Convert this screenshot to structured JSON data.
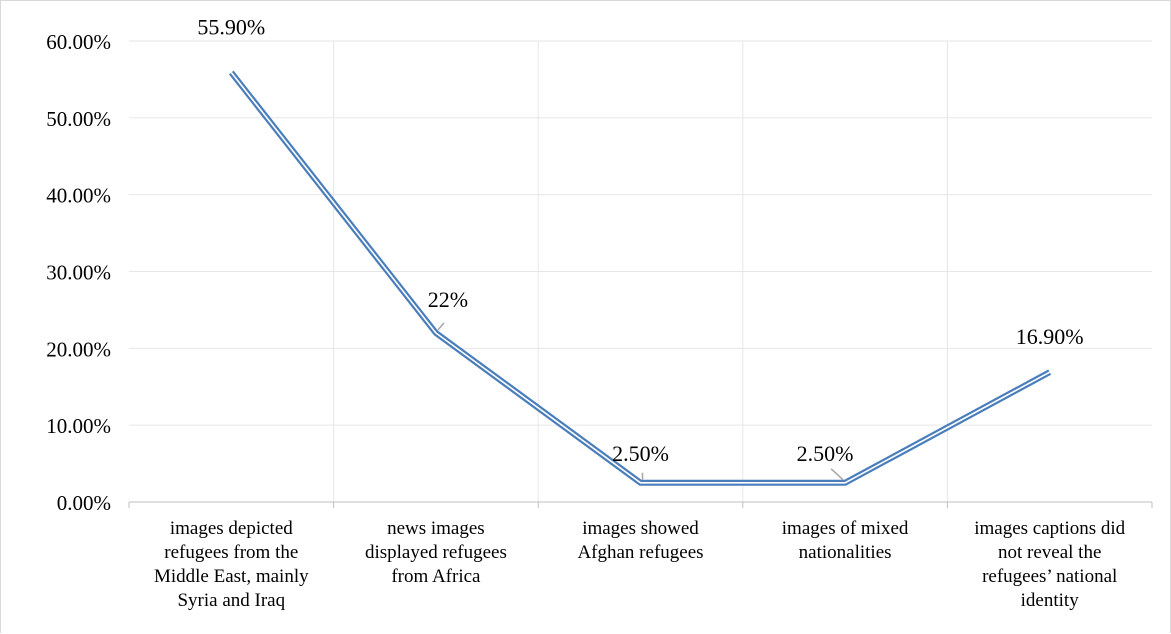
{
  "chart_data": {
    "type": "line",
    "categories": [
      [
        "images depicted",
        "refugees from the",
        "Middle East, mainly",
        "Syria and Iraq"
      ],
      [
        "news images",
        "displayed refugees",
        "from Africa"
      ],
      [
        "images showed",
        "Afghan refugees"
      ],
      [
        "images of mixed",
        "nationalities"
      ],
      [
        "images captions did",
        "not reveal the",
        "refugees’ national",
        "identity"
      ]
    ],
    "values": [
      55.9,
      22.0,
      2.5,
      2.5,
      16.9
    ],
    "data_labels": [
      "55.90%",
      "22%",
      "2.50%",
      "2.50%",
      "16.90%"
    ],
    "yticks": [
      "0.00%",
      "10.00%",
      "20.00%",
      "30.00%",
      "40.00%",
      "50.00%",
      "60.00%"
    ],
    "ylim": [
      0,
      60
    ],
    "grid": true,
    "legend": "none",
    "title": "",
    "xlabel": "",
    "ylabel": "",
    "colors": {
      "line": "#4a7ebb",
      "grid": "#e6e6e6",
      "axis": "#bfbfbf",
      "leader": "#a6a6a6"
    }
  }
}
